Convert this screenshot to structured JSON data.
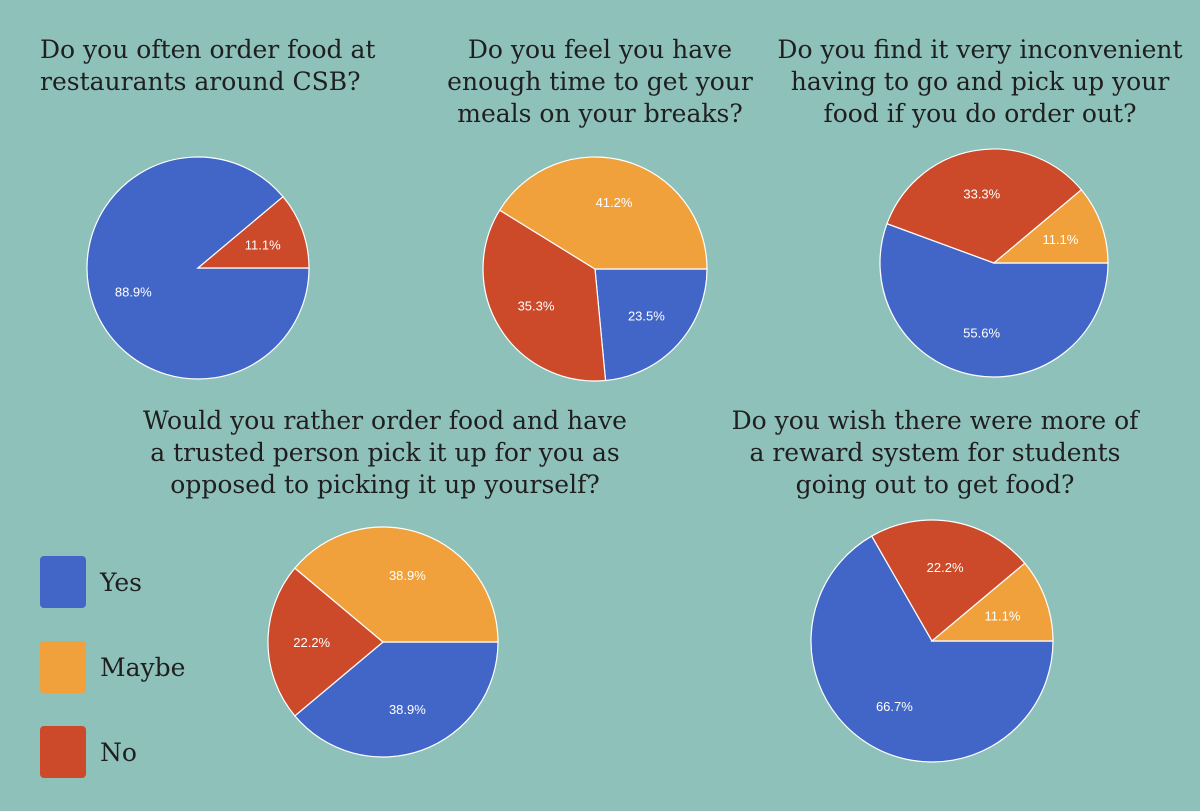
{
  "colors": {
    "yes": "#4166c7",
    "maybe": "#f0a13c",
    "no": "#cc4a2a"
  },
  "legend": [
    {
      "key": "yes",
      "label": "Yes"
    },
    {
      "key": "maybe",
      "label": "Maybe"
    },
    {
      "key": "no",
      "label": "No"
    }
  ],
  "chart_data": [
    {
      "type": "pie",
      "title_lines": [
        "Do you often order food at",
        "restaurants around CSB?"
      ],
      "slices": [
        {
          "key": "yes",
          "label": "88.9%",
          "value": 88.9
        },
        {
          "key": "no",
          "label": "11.1%",
          "value": 11.1
        }
      ]
    },
    {
      "type": "pie",
      "title_lines": [
        "Do you feel you have",
        "enough time to get your",
        "meals on your breaks?"
      ],
      "slices": [
        {
          "key": "yes",
          "label": "23.5%",
          "value": 23.5
        },
        {
          "key": "no",
          "label": "35.3%",
          "value": 35.3
        },
        {
          "key": "maybe",
          "label": "41.2%",
          "value": 41.2
        }
      ]
    },
    {
      "type": "pie",
      "title_lines": [
        "Do you find it very inconvenient",
        "having to go and pick up your",
        "food if you do order out?"
      ],
      "slices": [
        {
          "key": "yes",
          "label": "55.6%",
          "value": 55.6
        },
        {
          "key": "no",
          "label": "33.3%",
          "value": 33.3
        },
        {
          "key": "maybe",
          "label": "11.1%",
          "value": 11.1
        }
      ]
    },
    {
      "type": "pie",
      "title_lines": [
        "Would you rather order food and have",
        "a trusted person pick it up for you as",
        "opposed to picking it up yourself?"
      ],
      "slices": [
        {
          "key": "yes",
          "label": "38.9%",
          "value": 38.9
        },
        {
          "key": "no",
          "label": "22.2%",
          "value": 22.2
        },
        {
          "key": "maybe",
          "label": "38.9%",
          "value": 38.9
        }
      ]
    },
    {
      "type": "pie",
      "title_lines": [
        "Do you wish there were more of",
        "a reward system for students",
        "going out to get food?"
      ],
      "slices": [
        {
          "key": "yes",
          "label": "66.7%",
          "value": 66.7
        },
        {
          "key": "no",
          "label": "22.2%",
          "value": 22.2
        },
        {
          "key": "maybe",
          "label": "11.1%",
          "value": 11.1
        }
      ]
    }
  ]
}
